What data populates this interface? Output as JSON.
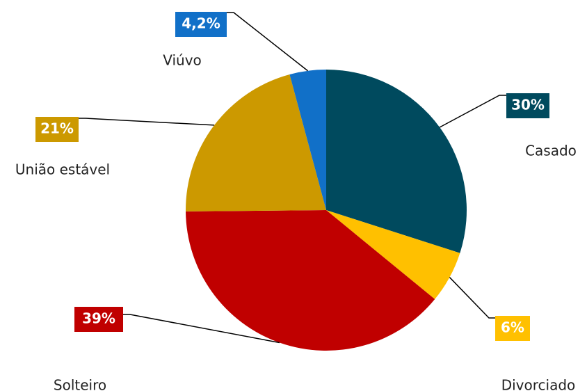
{
  "chart_data": {
    "type": "pie",
    "categories": [
      "Casado",
      "Divorciado",
      "Solteiro",
      "União estável",
      "Viúvo"
    ],
    "values": [
      30,
      6,
      39,
      21,
      4.2
    ],
    "value_labels": [
      "30%",
      "6%",
      "39%",
      "21%",
      "4,2%"
    ],
    "colors": [
      "#004a5e",
      "#ffc000",
      "#c00000",
      "#cc9900",
      "#1170c8"
    ]
  }
}
